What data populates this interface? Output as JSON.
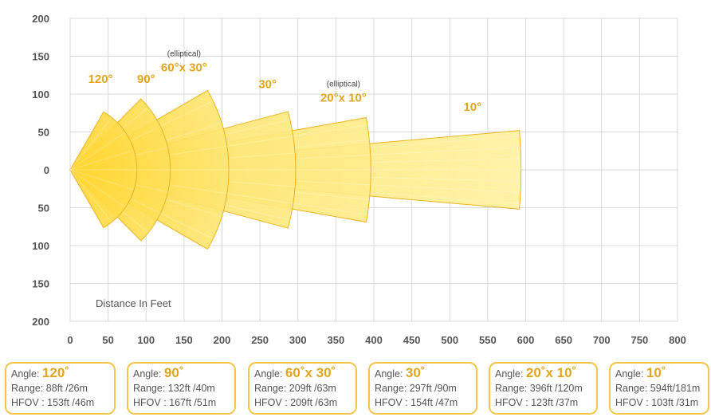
{
  "chart_data": {
    "type": "area",
    "xlabel": "Distance In Feet",
    "x_ticks": [
      "0",
      "50",
      "100",
      "150",
      "200",
      "250",
      "300",
      "350",
      "400",
      "450",
      "500",
      "550",
      "600",
      "650",
      "700",
      "750",
      "800"
    ],
    "y_ticks": [
      "200",
      "150",
      "100",
      "50",
      "0",
      "50",
      "100",
      "150",
      "200"
    ],
    "xlim": [
      0,
      800
    ],
    "ylim": [
      -200,
      200
    ],
    "grid": true,
    "series": [
      {
        "name": "120°",
        "angle_deg": 120,
        "range_ft": 88
      },
      {
        "name": "90°",
        "angle_deg": 90,
        "range_ft": 132
      },
      {
        "name": "60°x 30°",
        "note": "(elliptical)",
        "angle_deg": 60,
        "range_ft": 209
      },
      {
        "name": "30°",
        "angle_deg": 30,
        "range_ft": 297
      },
      {
        "name": "20°x 10°",
        "note": "(elliptical)",
        "angle_deg": 20,
        "range_ft": 396
      },
      {
        "name": "10°",
        "angle_deg": 10,
        "range_ft": 594
      }
    ],
    "annotations": [
      {
        "text": "120°",
        "x": 40,
        "y": 115
      },
      {
        "text": "90°",
        "x": 100,
        "y": 115
      },
      {
        "text": "(elliptical)",
        "x": 150,
        "y": 150,
        "small": true
      },
      {
        "text": "60°x 30°",
        "x": 150,
        "y": 130
      },
      {
        "text": "30°",
        "x": 260,
        "y": 108
      },
      {
        "text": "(elliptical)",
        "x": 360,
        "y": 110,
        "small": true
      },
      {
        "text": "20°x 10°",
        "x": 360,
        "y": 90
      },
      {
        "text": "10°",
        "x": 530,
        "y": 78
      }
    ]
  },
  "cards": [
    {
      "angle_prefix": "Angle: ",
      "angle": "120˚",
      "range": "Range: 88ft /26m",
      "hfov": "HFOV : 153ft /46m"
    },
    {
      "angle_prefix": "Angle: ",
      "angle": "90˚",
      "range": "Range: 132ft /40m",
      "hfov": "HFOV : 167ft /51m"
    },
    {
      "angle_prefix": "Angle: ",
      "angle": "60˚x 30˚",
      "range": "Range: 209ft /63m",
      "hfov": "HFOV : 209ft /63m"
    },
    {
      "angle_prefix": "Angle: ",
      "angle": "30˚",
      "range": "Range: 297ft /90m",
      "hfov": "HFOV : 154ft /47m"
    },
    {
      "angle_prefix": "Angle: ",
      "angle": "20˚x 10˚",
      "range": "Range: 396ft /120m",
      "hfov": "HFOV : 123ft /37m"
    },
    {
      "angle_prefix": "Angle: ",
      "angle": "10˚",
      "range": "Range: 594ft/181m",
      "hfov": "HFOV : 103ft /31m"
    }
  ],
  "colors": {
    "grid": "#d9d9d9",
    "axis_text": "#555555",
    "beam_light": "#fff3a6",
    "beam_dark": "#f8c41a",
    "beam_edge": "#eab325",
    "label": "#e0a51f",
    "card_border": "#f2c64c"
  }
}
